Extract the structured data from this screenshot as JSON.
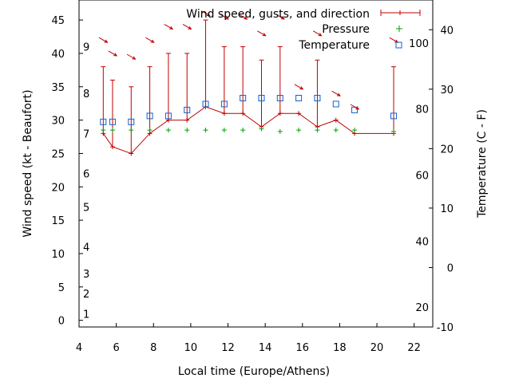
{
  "chart_data": {
    "type": "line",
    "xlabel": "Local time (Europe/Athens)",
    "ylabel": "Wind speed (kt - Beaufort)",
    "y2label": "Temperature (C - F)",
    "xlim": [
      4,
      23
    ],
    "ylim": [
      -1,
      48
    ],
    "y2lim_celsius": [
      -10,
      45
    ],
    "x_ticks": [
      4,
      6,
      8,
      10,
      12,
      14,
      16,
      18,
      20,
      22
    ],
    "y_ticks": [
      0,
      5,
      10,
      15,
      20,
      25,
      30,
      35,
      40,
      45
    ],
    "celsius_ticks": [
      -10,
      0,
      10,
      20,
      30,
      40
    ],
    "fahrenheit_ticks": [
      20,
      40,
      60,
      80,
      100
    ],
    "beaufort_scale": [
      {
        "label": "1",
        "kt": 1
      },
      {
        "label": "2",
        "kt": 4
      },
      {
        "label": "3",
        "kt": 7
      },
      {
        "label": "4",
        "kt": 11
      },
      {
        "label": "5",
        "kt": 17
      },
      {
        "label": "6",
        "kt": 22
      },
      {
        "label": "7",
        "kt": 28
      },
      {
        "label": "8",
        "kt": 34
      },
      {
        "label": "9",
        "kt": 41
      }
    ],
    "legend": [
      {
        "label": "Wind speed, gusts, and direction",
        "color": "#c00000",
        "marker": "errorbar"
      },
      {
        "label": "Pressure",
        "color": "#00a000",
        "marker": "plus"
      },
      {
        "label": "Temperature",
        "color": "#1060d0",
        "marker": "square"
      }
    ],
    "legend_position": "top-right",
    "wind": [
      {
        "x": 5.3,
        "speed": 28,
        "gust": 38
      },
      {
        "x": 5.8,
        "speed": 26,
        "gust": 36
      },
      {
        "x": 6.8,
        "speed": 25,
        "gust": 35
      },
      {
        "x": 7.8,
        "speed": 28,
        "gust": 38
      },
      {
        "x": 8.8,
        "speed": 30,
        "gust": 40
      },
      {
        "x": 9.8,
        "speed": 30,
        "gust": 40
      },
      {
        "x": 10.8,
        "speed": 32,
        "gust": 45
      },
      {
        "x": 11.8,
        "speed": 31,
        "gust": 41
      },
      {
        "x": 12.8,
        "speed": 31,
        "gust": 41
      },
      {
        "x": 13.8,
        "speed": 29,
        "gust": 39
      },
      {
        "x": 14.8,
        "speed": 31,
        "gust": 41
      },
      {
        "x": 15.8,
        "speed": 31,
        "gust": 31
      },
      {
        "x": 16.8,
        "speed": 29,
        "gust": 39
      },
      {
        "x": 17.8,
        "speed": 30,
        "gust": 30
      },
      {
        "x": 18.8,
        "speed": 28,
        "gust": 28
      },
      {
        "x": 20.9,
        "speed": 28,
        "gust": 38
      }
    ],
    "wind_direction_arrows": [
      {
        "x": 5.3,
        "y": 42,
        "from_deg": 300
      },
      {
        "x": 5.8,
        "y": 40,
        "from_deg": 300
      },
      {
        "x": 6.8,
        "y": 39.5,
        "from_deg": 300
      },
      {
        "x": 7.8,
        "y": 42,
        "from_deg": 300
      },
      {
        "x": 8.8,
        "y": 44,
        "from_deg": 300
      },
      {
        "x": 9.8,
        "y": 44,
        "from_deg": 300
      },
      {
        "x": 10.8,
        "y": 46,
        "from_deg": 300
      },
      {
        "x": 11.8,
        "y": 45.5,
        "from_deg": 300
      },
      {
        "x": 12.8,
        "y": 45.5,
        "from_deg": 300
      },
      {
        "x": 13.8,
        "y": 43,
        "from_deg": 300
      },
      {
        "x": 14.8,
        "y": 45.5,
        "from_deg": 300
      },
      {
        "x": 15.8,
        "y": 35,
        "from_deg": 300
      },
      {
        "x": 16.8,
        "y": 43,
        "from_deg": 300
      },
      {
        "x": 17.8,
        "y": 34,
        "from_deg": 300
      },
      {
        "x": 18.8,
        "y": 32,
        "from_deg": 300
      },
      {
        "x": 20.9,
        "y": 42,
        "from_deg": 300
      }
    ],
    "pressure": [
      {
        "x": 5.3,
        "y": 28.5
      },
      {
        "x": 5.8,
        "y": 28.5
      },
      {
        "x": 6.8,
        "y": 28.5
      },
      {
        "x": 7.8,
        "y": 28.5
      },
      {
        "x": 8.8,
        "y": 28.5
      },
      {
        "x": 9.8,
        "y": 28.5
      },
      {
        "x": 10.8,
        "y": 28.5
      },
      {
        "x": 11.8,
        "y": 28.5
      },
      {
        "x": 12.8,
        "y": 28.5
      },
      {
        "x": 13.8,
        "y": 28.7
      },
      {
        "x": 14.8,
        "y": 28.3
      },
      {
        "x": 15.8,
        "y": 28.5
      },
      {
        "x": 16.8,
        "y": 28.5
      },
      {
        "x": 17.8,
        "y": 28.5
      },
      {
        "x": 18.8,
        "y": 28.5
      },
      {
        "x": 20.9,
        "y": 28.3
      }
    ],
    "temperature_celsius": [
      {
        "x": 5.3,
        "y": 24.5
      },
      {
        "x": 5.8,
        "y": 24.5
      },
      {
        "x": 6.8,
        "y": 24.5
      },
      {
        "x": 7.8,
        "y": 25.5
      },
      {
        "x": 8.8,
        "y": 25.5
      },
      {
        "x": 9.8,
        "y": 26.5
      },
      {
        "x": 10.8,
        "y": 27.5
      },
      {
        "x": 11.8,
        "y": 27.5
      },
      {
        "x": 12.8,
        "y": 28.5
      },
      {
        "x": 13.8,
        "y": 28.5
      },
      {
        "x": 14.8,
        "y": 28.5
      },
      {
        "x": 15.8,
        "y": 28.5
      },
      {
        "x": 16.8,
        "y": 28.5
      },
      {
        "x": 17.8,
        "y": 27.5
      },
      {
        "x": 18.8,
        "y": 26.5
      },
      {
        "x": 20.9,
        "y": 25.5
      }
    ],
    "colors": {
      "wind": "#c00000",
      "pressure": "#00a000",
      "temperature": "#1060d0",
      "axis": "#000000"
    }
  }
}
